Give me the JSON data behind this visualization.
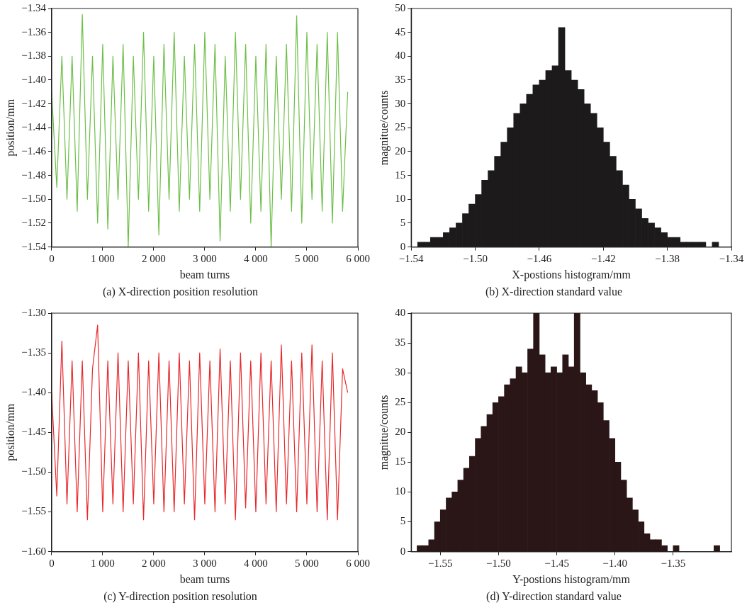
{
  "chart_data": [
    {
      "type": "line",
      "title": "(a) X-direction position resolution",
      "xlabel": "beam turns",
      "ylabel": "position/mm",
      "grid": false,
      "legend": false,
      "xlim": [
        0,
        6000
      ],
      "xticks": [
        0,
        {
          "value": 1000,
          "label": "1 000"
        },
        {
          "value": 2000,
          "label": "2 000"
        },
        {
          "value": 3000,
          "label": "3 000"
        },
        {
          "value": 4000,
          "label": "4 000"
        },
        {
          "value": 5000,
          "label": "5 000"
        },
        {
          "value": 6000,
          "label": "6 000"
        }
      ],
      "ylim": [
        -1.54,
        -1.34
      ],
      "yticks": [
        {
          "value": -1.54,
          "label": "−1.54"
        },
        {
          "value": -1.52,
          "label": "−1.52"
        },
        {
          "value": -1.5,
          "label": "−1.50"
        },
        {
          "value": -1.48,
          "label": "−1.48"
        },
        {
          "value": -1.46,
          "label": "−1.46"
        },
        {
          "value": -1.44,
          "label": "−1.44"
        },
        {
          "value": -1.42,
          "label": "−1.42"
        },
        {
          "value": -1.4,
          "label": "−1.40"
        },
        {
          "value": -1.38,
          "label": "−1.38"
        },
        {
          "value": -1.36,
          "label": "−1.36"
        },
        {
          "value": -1.34,
          "label": "−1.34"
        }
      ],
      "x": [
        0,
        100,
        200,
        300,
        400,
        500,
        600,
        700,
        800,
        900,
        1000,
        1100,
        1200,
        1300,
        1400,
        1500,
        1600,
        1700,
        1800,
        1900,
        2000,
        2100,
        2200,
        2300,
        2400,
        2500,
        2600,
        2700,
        2800,
        2900,
        3000,
        3100,
        3200,
        3300,
        3400,
        3500,
        3600,
        3700,
        3800,
        3900,
        4000,
        4100,
        4200,
        4300,
        4400,
        4500,
        4600,
        4700,
        4800,
        4900,
        5000,
        5100,
        5200,
        5300,
        5400,
        5500,
        5600,
        5700,
        5800
      ],
      "series": [
        {
          "color": "#6cbf47",
          "values": [
            -1.41,
            -1.49,
            -1.38,
            -1.5,
            -1.38,
            -1.51,
            -1.345,
            -1.5,
            -1.38,
            -1.52,
            -1.37,
            -1.525,
            -1.38,
            -1.5,
            -1.37,
            -1.54,
            -1.38,
            -1.5,
            -1.36,
            -1.51,
            -1.38,
            -1.53,
            -1.37,
            -1.5,
            -1.36,
            -1.51,
            -1.38,
            -1.5,
            -1.37,
            -1.51,
            -1.36,
            -1.5,
            -1.37,
            -1.535,
            -1.38,
            -1.51,
            -1.36,
            -1.5,
            -1.37,
            -1.52,
            -1.38,
            -1.51,
            -1.37,
            -1.54,
            -1.38,
            -1.5,
            -1.37,
            -1.51,
            -1.346,
            -1.52,
            -1.36,
            -1.5,
            -1.37,
            -1.51,
            -1.36,
            -1.52,
            -1.36,
            -1.51,
            -1.41
          ]
        }
      ]
    },
    {
      "type": "histogram",
      "title": "(b) X-direction standard value",
      "xlabel": "X-postions histogram/mm",
      "ylabel": "magnitue/counts",
      "grid": false,
      "legend": false,
      "color": "#1c1a1a",
      "xlim": [
        -1.54,
        -1.34
      ],
      "xticks": [
        {
          "value": -1.54,
          "label": "−1.54"
        },
        {
          "value": -1.5,
          "label": "−1.50"
        },
        {
          "value": -1.46,
          "label": "−1.46"
        },
        {
          "value": -1.42,
          "label": "−1.42"
        },
        {
          "value": -1.38,
          "label": "−1.38"
        },
        {
          "value": -1.34,
          "label": "−1.34"
        }
      ],
      "ylim": [
        0,
        50
      ],
      "yticks": [
        0,
        5,
        10,
        15,
        20,
        25,
        30,
        35,
        40,
        45,
        50
      ],
      "bins": [
        -1.54,
        -1.536,
        -1.532,
        -1.528,
        -1.524,
        -1.52,
        -1.516,
        -1.512,
        -1.508,
        -1.504,
        -1.5,
        -1.496,
        -1.492,
        -1.488,
        -1.484,
        -1.48,
        -1.476,
        -1.472,
        -1.468,
        -1.464,
        -1.46,
        -1.456,
        -1.452,
        -1.448,
        -1.444,
        -1.44,
        -1.436,
        -1.432,
        -1.428,
        -1.424,
        -1.42,
        -1.416,
        -1.412,
        -1.408,
        -1.404,
        -1.4,
        -1.396,
        -1.392,
        -1.388,
        -1.384,
        -1.38,
        -1.376,
        -1.372,
        -1.368,
        -1.364,
        -1.36,
        -1.356,
        -1.352,
        -1.348,
        -1.344,
        -1.34
      ],
      "values": [
        0,
        1,
        1,
        2,
        2,
        3,
        4,
        5,
        7,
        9,
        11,
        14,
        16,
        19,
        22,
        25,
        28,
        30,
        32,
        34,
        35,
        37,
        38,
        46,
        37,
        35,
        33,
        30,
        28,
        25,
        22,
        19,
        16,
        13,
        10,
        8,
        6,
        5,
        4,
        3,
        2,
        2,
        1,
        1,
        1,
        1,
        0,
        1,
        0,
        0
      ]
    },
    {
      "type": "line",
      "title": "(c) Y-direction position resolution",
      "xlabel": "beam turns",
      "ylabel": "position/mm",
      "grid": false,
      "legend": false,
      "xlim": [
        0,
        6000
      ],
      "xticks": [
        0,
        {
          "value": 1000,
          "label": "1 000"
        },
        {
          "value": 2000,
          "label": "2 000"
        },
        {
          "value": 3000,
          "label": "3 000"
        },
        {
          "value": 4000,
          "label": "4 000"
        },
        {
          "value": 5000,
          "label": "5 000"
        },
        {
          "value": 6000,
          "label": "6 000"
        }
      ],
      "ylim": [
        -1.6,
        -1.3
      ],
      "yticks": [
        {
          "value": -1.6,
          "label": "−1.60"
        },
        {
          "value": -1.55,
          "label": "−1.55"
        },
        {
          "value": -1.5,
          "label": "−1.50"
        },
        {
          "value": -1.45,
          "label": "−1.45"
        },
        {
          "value": -1.4,
          "label": "−1.40"
        },
        {
          "value": -1.35,
          "label": "−1.35"
        },
        {
          "value": -1.3,
          "label": "−1.30"
        }
      ],
      "x": [
        0,
        100,
        200,
        300,
        400,
        500,
        600,
        700,
        800,
        900,
        1000,
        1100,
        1200,
        1300,
        1400,
        1500,
        1600,
        1700,
        1800,
        1900,
        2000,
        2100,
        2200,
        2300,
        2400,
        2500,
        2600,
        2700,
        2800,
        2900,
        3000,
        3100,
        3200,
        3300,
        3400,
        3500,
        3600,
        3700,
        3800,
        3900,
        4000,
        4100,
        4200,
        4300,
        4400,
        4500,
        4600,
        4700,
        4800,
        4900,
        5000,
        5100,
        5200,
        5300,
        5400,
        5500,
        5600,
        5700,
        5800
      ],
      "series": [
        {
          "color": "#e8282b",
          "values": [
            -1.4,
            -1.53,
            -1.335,
            -1.54,
            -1.36,
            -1.55,
            -1.36,
            -1.56,
            -1.37,
            -1.315,
            -1.55,
            -1.36,
            -1.54,
            -1.35,
            -1.55,
            -1.36,
            -1.54,
            -1.35,
            -1.56,
            -1.36,
            -1.54,
            -1.35,
            -1.55,
            -1.36,
            -1.55,
            -1.35,
            -1.54,
            -1.36,
            -1.56,
            -1.35,
            -1.54,
            -1.36,
            -1.55,
            -1.345,
            -1.54,
            -1.36,
            -1.56,
            -1.35,
            -1.545,
            -1.36,
            -1.55,
            -1.35,
            -1.54,
            -1.36,
            -1.55,
            -1.34,
            -1.54,
            -1.36,
            -1.55,
            -1.35,
            -1.54,
            -1.34,
            -1.55,
            -1.36,
            -1.56,
            -1.35,
            -1.56,
            -1.37,
            -1.4
          ]
        }
      ]
    },
    {
      "type": "histogram",
      "title": "(d) Y-direction standard value",
      "xlabel": "Y-postions histogram/mm",
      "ylabel": "magnitue/counts",
      "grid": false,
      "legend": false,
      "color": "#2a1616",
      "xlim": [
        -1.575,
        -1.3
      ],
      "xticks": [
        {
          "value": -1.55,
          "label": "−1.55"
        },
        {
          "value": -1.5,
          "label": "−1.50"
        },
        {
          "value": -1.45,
          "label": "−1.45"
        },
        {
          "value": -1.4,
          "label": "−1.40"
        },
        {
          "value": -1.35,
          "label": "−1.35"
        }
      ],
      "ylim": [
        0,
        40
      ],
      "yticks": [
        0,
        5,
        10,
        15,
        20,
        25,
        30,
        35,
        40
      ],
      "bins": [
        -1.575,
        -1.57,
        -1.565,
        -1.56,
        -1.555,
        -1.55,
        -1.545,
        -1.54,
        -1.535,
        -1.53,
        -1.525,
        -1.52,
        -1.515,
        -1.51,
        -1.505,
        -1.5,
        -1.495,
        -1.49,
        -1.485,
        -1.48,
        -1.475,
        -1.47,
        -1.465,
        -1.46,
        -1.455,
        -1.45,
        -1.445,
        -1.44,
        -1.435,
        -1.43,
        -1.425,
        -1.42,
        -1.415,
        -1.41,
        -1.405,
        -1.4,
        -1.395,
        -1.39,
        -1.385,
        -1.38,
        -1.375,
        -1.37,
        -1.365,
        -1.36,
        -1.355,
        -1.35,
        -1.345,
        -1.34,
        -1.335,
        -1.33,
        -1.325,
        -1.32,
        -1.315,
        -1.31,
        -1.305,
        -1.3
      ],
      "values": [
        0,
        1,
        1,
        2,
        5,
        7,
        9,
        10,
        12,
        14,
        16,
        19,
        21,
        23,
        25,
        26,
        28,
        29,
        31,
        30,
        34,
        40,
        33,
        30,
        31,
        30,
        33,
        31,
        40,
        30,
        28,
        27,
        25,
        22,
        19,
        15,
        12,
        9,
        7,
        5,
        3,
        2,
        2,
        1,
        0,
        1,
        0,
        0,
        0,
        0,
        0,
        0,
        1,
        0,
        0
      ]
    }
  ]
}
